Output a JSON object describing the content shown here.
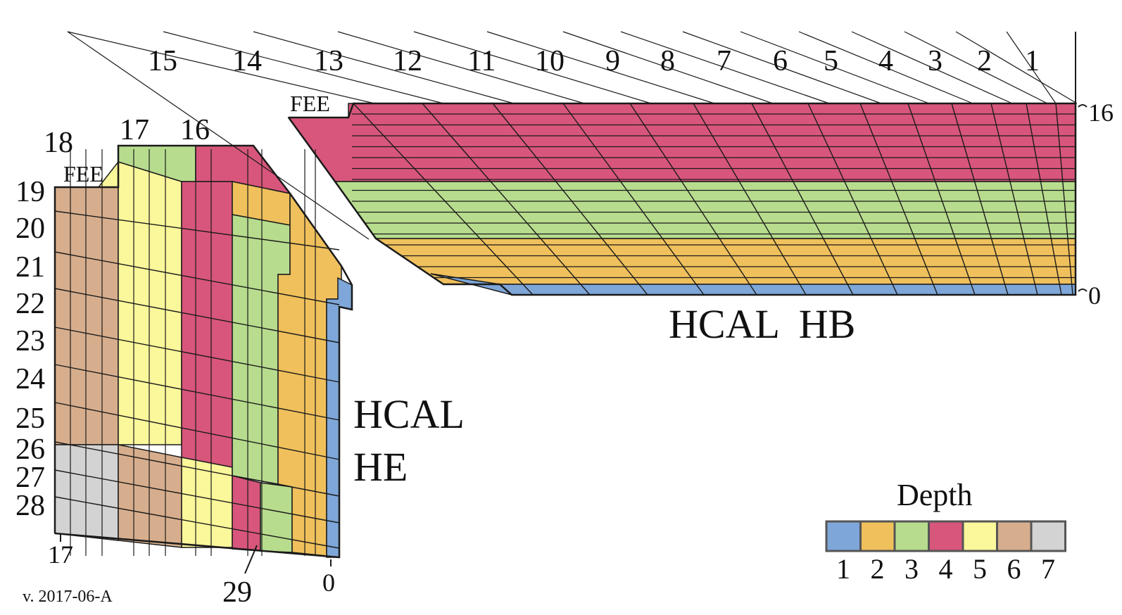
{
  "colors": {
    "depth_1": "#7ea6d8",
    "depth_2": "#efc05c",
    "depth_3": "#b7dc8e",
    "depth_4": "#d8567b",
    "depth_5": "#fbf79b",
    "depth_6": "#d7ae8d",
    "depth_7": "#d3d3d3",
    "line": "#1a1a1a"
  },
  "hb": {
    "label": "HCAL  HB",
    "fee_label": "FEE",
    "tower_numbers": [
      "15",
      "14",
      "13",
      "12",
      "11",
      "10",
      "9",
      "8",
      "7",
      "6",
      "5",
      "4",
      "3",
      "2",
      "1"
    ],
    "layer_top_label": "16",
    "layer_bottom_label": "0"
  },
  "he": {
    "label_line1": "HCAL",
    "label_line2": "HE",
    "fee_label": "FEE",
    "tower_numbers": [
      "16",
      "17",
      "18",
      "19",
      "20",
      "21",
      "22",
      "23",
      "24",
      "25",
      "26",
      "27",
      "28"
    ],
    "bottom_left_label": "17",
    "bottom_mid_label": "29",
    "bottom_right_label": "0"
  },
  "legend": {
    "title": "Depth",
    "items": [
      {
        "label": "1",
        "color_key": "depth_1"
      },
      {
        "label": "2",
        "color_key": "depth_2"
      },
      {
        "label": "3",
        "color_key": "depth_3"
      },
      {
        "label": "4",
        "color_key": "depth_4"
      },
      {
        "label": "5",
        "color_key": "depth_5"
      },
      {
        "label": "6",
        "color_key": "depth_6"
      },
      {
        "label": "7",
        "color_key": "depth_7"
      }
    ]
  },
  "version": "v. 2017-06-A"
}
